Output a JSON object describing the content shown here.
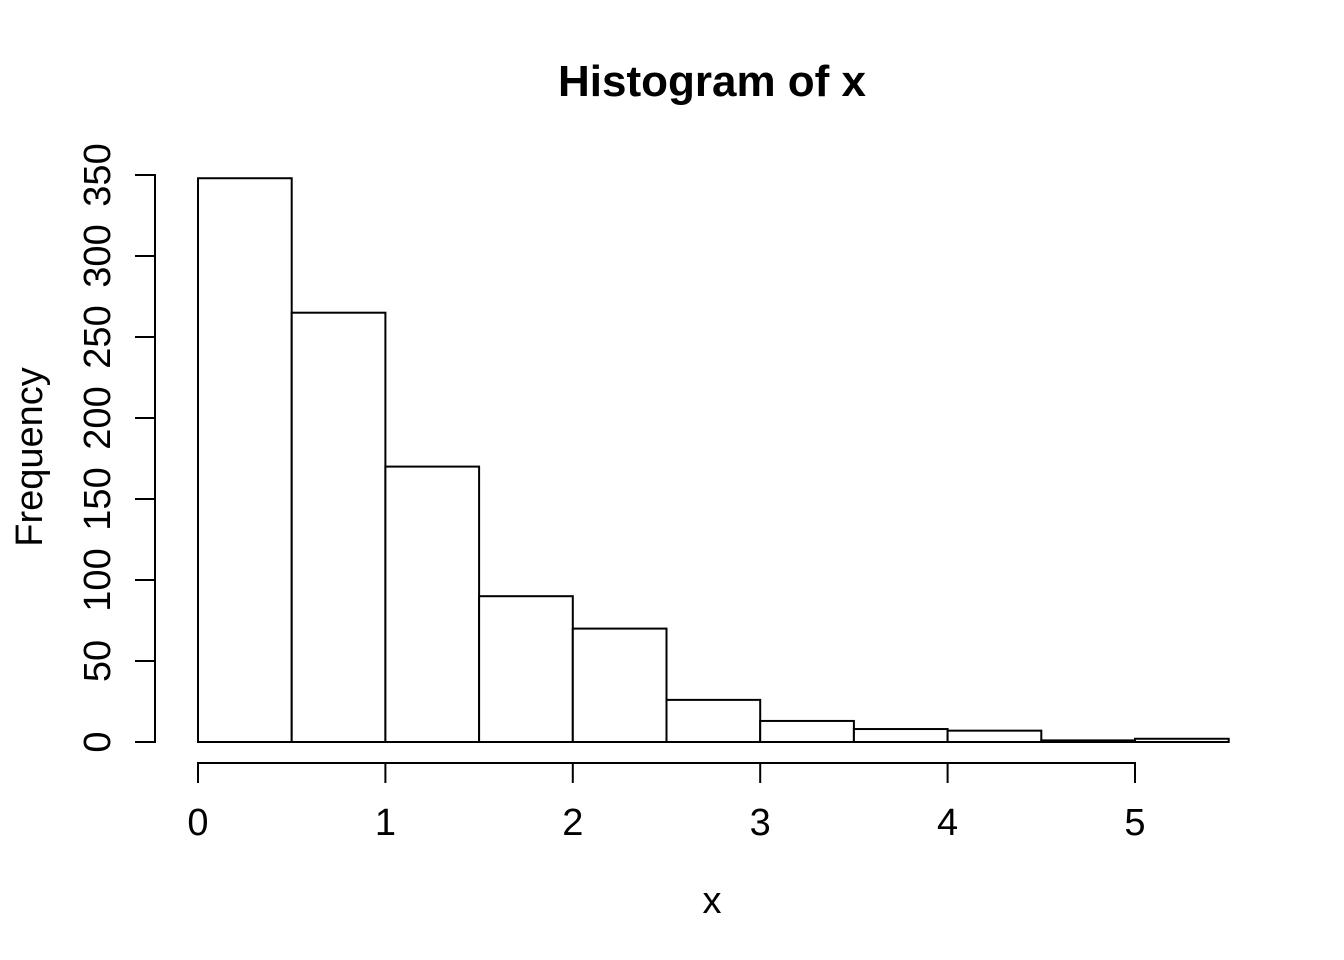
{
  "figure": {
    "background_color": "#ffffff",
    "foreground_color": "#000000"
  },
  "chart_data": {
    "type": "bar",
    "subtype": "histogram",
    "title": "Histogram of x",
    "xlabel": "x",
    "ylabel": "Frequency",
    "bin_width": 0.5,
    "bin_edges": [
      0,
      0.5,
      1,
      1.5,
      2,
      2.5,
      3,
      3.5,
      4,
      4.5,
      5,
      5.5
    ],
    "counts": [
      348,
      265,
      170,
      90,
      70,
      26,
      13,
      8,
      7,
      1,
      2
    ],
    "x_ticks": [
      0,
      1,
      2,
      3,
      4,
      5
    ],
    "y_ticks": [
      0,
      50,
      100,
      150,
      200,
      250,
      300,
      350
    ],
    "xlim": [
      0,
      5.5
    ],
    "ylim": [
      0,
      350
    ],
    "bar_fill": "#ffffff",
    "bar_stroke": "#000000",
    "axis_color": "#000000",
    "grid": false,
    "legend": false
  }
}
